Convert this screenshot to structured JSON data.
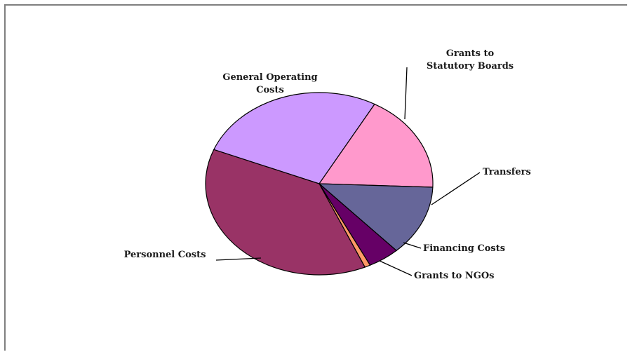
{
  "chart_data": {
    "type": "pie",
    "title": "",
    "slices": [
      {
        "label": "General Operating Costs",
        "lines": [
          "General Operating",
          "Costs"
        ],
        "value": 27.0,
        "color": "#cc99ff"
      },
      {
        "label": "Grants to Statutory Boards",
        "lines": [
          "Grants to",
          "Statutory Boards"
        ],
        "value": 17.5,
        "color": "#ff99cc"
      },
      {
        "label": "Transfers",
        "lines": [
          "Transfers"
        ],
        "value": 12.5,
        "color": "#666699"
      },
      {
        "label": "Financing Costs",
        "lines": [
          "Financing Costs"
        ],
        "value": 4.5,
        "color": "#660066"
      },
      {
        "label": "Grants to NGOs",
        "lines": [
          "Grants to NGOs"
        ],
        "value": 0.8,
        "color": "#ff9966"
      },
      {
        "label": "Personnel Costs",
        "lines": [
          "Personnel Costs"
        ],
        "value": 37.7,
        "color": "#993366"
      }
    ],
    "legend": "none",
    "labels": "outside-with-leader-lines"
  }
}
